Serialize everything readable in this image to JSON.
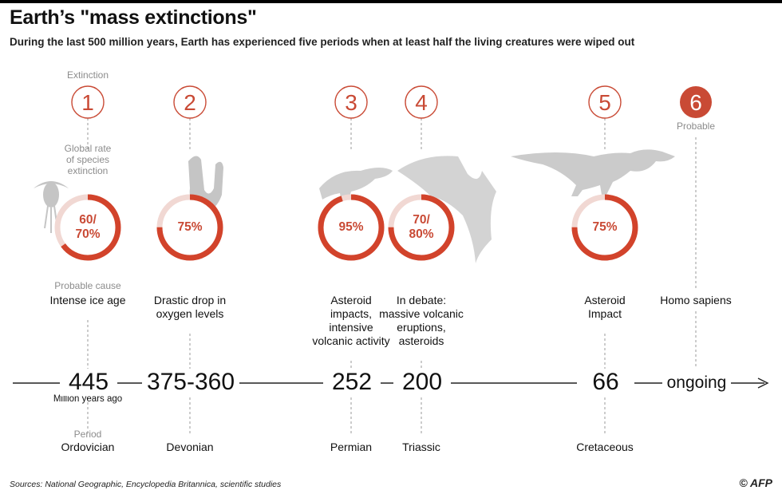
{
  "title": "Earth’s \"mass extinctions\"",
  "subtitle": "During the last 500 million years, Earth has experienced five periods when at least half the living creatures were wiped out",
  "labels": {
    "extinction": "Extinction",
    "rate": [
      "Global rate",
      "of species",
      "extinction"
    ],
    "probable_cause": "Probable cause",
    "period": "Period",
    "million_years_ago": "Million years ago",
    "probable": "Probable"
  },
  "colors": {
    "accent": "#c94a35",
    "ring": "#d2432b",
    "ring_light": "#f1d8d3",
    "grey_art": "#c5c5c5",
    "axis": "#222222"
  },
  "chart_data": {
    "type": "timeline",
    "title": "Earth’s \"mass extinctions\"",
    "events": [
      {
        "number": "1",
        "rate_label": [
          "60/",
          "70%"
        ],
        "rate": 0.65,
        "cause": [
          "Intense ice age"
        ],
        "years": "445",
        "period": "Ordovician",
        "icon": "trilobite-icon"
      },
      {
        "number": "2",
        "rate_label": [
          "75%"
        ],
        "rate": 0.75,
        "cause": [
          "Drastic drop in",
          "oxygen levels"
        ],
        "years": "375-360",
        "period": "Devonian",
        "icon": "crinoid-icon"
      },
      {
        "number": "3",
        "rate_label": [
          "95%"
        ],
        "rate": 0.95,
        "cause": [
          "Asteroid",
          "impacts,",
          "intensive",
          "volcanic activity"
        ],
        "years": "252",
        "period": "Permian",
        "icon": "reptile-skeleton-icon"
      },
      {
        "number": "4",
        "rate_label": [
          "70/",
          "80%"
        ],
        "rate": 0.75,
        "cause": [
          "In debate:",
          "massive volcanic",
          "eruptions,",
          "asteroids"
        ],
        "years": "200",
        "period": "Triassic",
        "icon": "pterosaur-icon"
      },
      {
        "number": "5",
        "rate_label": [
          "75%"
        ],
        "rate": 0.75,
        "cause": [
          "Asteroid",
          "Impact"
        ],
        "years": "66",
        "period": "Cretaceous",
        "icon": "dinosaur-skeleton-icon"
      },
      {
        "number": "6",
        "rate_label": [],
        "cause": [
          "Homo sapiens"
        ],
        "years": "ongoing",
        "period": "",
        "status": "Probable"
      }
    ]
  },
  "footer": {
    "sources": "Sources: National Geographic, Encyclopedia Britannica, scientific studies",
    "logo": "© AFP"
  }
}
